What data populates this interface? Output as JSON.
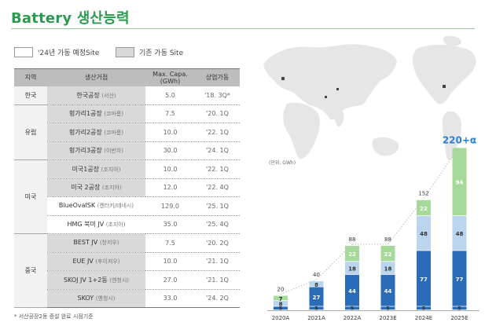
{
  "header": {
    "title": "Battery 생산능력"
  },
  "legend": {
    "planned": {
      "label": "'24년 가동 예정Site",
      "color": "#ffffff"
    },
    "existing": {
      "label": "기존 가동 Site",
      "color": "#d9d9d9"
    }
  },
  "table": {
    "headers": {
      "region": "지역",
      "site": "생산거점",
      "capa": "Max. Capa. (GWh)",
      "start": "상업가동"
    },
    "regions": [
      {
        "name": "한국",
        "rows": [
          {
            "site": "한국공장",
            "loc": "(서산)",
            "capa": "5.0",
            "start": "'18. 3Q*",
            "status": "existing"
          }
        ]
      },
      {
        "name": "유럽",
        "rows": [
          {
            "site": "헝가리1공장",
            "loc": "(코마롬)",
            "capa": "7.5",
            "start": "'20. 1Q",
            "status": "existing"
          },
          {
            "site": "헝가리2공장",
            "loc": "(코마롬)",
            "capa": "10.0",
            "start": "'22. 1Q",
            "status": "existing"
          },
          {
            "site": "헝가리3공장",
            "loc": "(이반차)",
            "capa": "30.0",
            "start": "'24. 1Q",
            "status": "existing"
          }
        ]
      },
      {
        "name": "미국",
        "rows": [
          {
            "site": "미국1공장",
            "loc": "(조지아)",
            "capa": "10.0",
            "start": "'22. 1Q",
            "status": "existing"
          },
          {
            "site": "미국 2공장",
            "loc": "(조지아)",
            "capa": "12.0",
            "start": "'22. 4Q",
            "status": "existing"
          },
          {
            "site": "BlueOvalSK",
            "loc": "(켄터키/테네시)",
            "capa": "129.0",
            "start": "'25. 1Q",
            "status": "planned"
          },
          {
            "site": "HMG 북미 JV",
            "loc": "(조지아)",
            "capa": "35.0",
            "start": "'25. 4Q",
            "status": "planned"
          }
        ]
      },
      {
        "name": "중국",
        "rows": [
          {
            "site": "BEST JV",
            "loc": "(창저우)",
            "capa": "7.5",
            "start": "'20. 2Q",
            "status": "existing"
          },
          {
            "site": "EUE JV",
            "loc": "(후이저우)",
            "capa": "10.0",
            "start": "'21. 1Q",
            "status": "existing"
          },
          {
            "site": "SKOJ JV 1+2동",
            "loc": "(옌청시)",
            "capa": "27.0",
            "start": "'21. 1Q",
            "status": "existing"
          },
          {
            "site": "SKOY",
            "loc": "(옌청시)",
            "capa": "33.0",
            "start": "'24. 2Q",
            "status": "existing"
          }
        ]
      }
    ]
  },
  "footnote": "* 서산공장2동 증설 완료 시점기준",
  "chart_data": {
    "type": "bar",
    "stacked": true,
    "unit_label": "(단위: GWh)",
    "categories": [
      "2020A",
      "2021A",
      "2022A",
      "2023E",
      "2024E",
      "2025E"
    ],
    "series": [
      {
        "values": [
          5,
          5,
          5,
          5,
          5,
          5
        ],
        "color": "#2b6cb8"
      },
      {
        "values": [
          null,
          27,
          44,
          44,
          77,
          77
        ],
        "color": "#2b6cb8"
      },
      {
        "values": [
          8,
          8,
          18,
          18,
          48,
          48
        ],
        "color": "#bcd5ef"
      },
      {
        "values": [
          7,
          null,
          22,
          22,
          22,
          94
        ],
        "color": "#a6d99a"
      }
    ],
    "totals": [
      "20",
      "40",
      "88",
      "88",
      "152",
      "220+α"
    ],
    "segment_labels": [
      [
        "5",
        null,
        "8",
        "7"
      ],
      [
        "5",
        "27",
        "8",
        null
      ],
      [
        "5",
        "44",
        "18",
        "22"
      ],
      [
        "5",
        "44",
        "18",
        "22"
      ],
      [
        "5",
        "77",
        "48",
        "22"
      ],
      [
        "5",
        "77",
        "48",
        "94"
      ]
    ],
    "highlight_total_color": "#2a7fd6",
    "ylim": [
      0,
      220
    ]
  }
}
